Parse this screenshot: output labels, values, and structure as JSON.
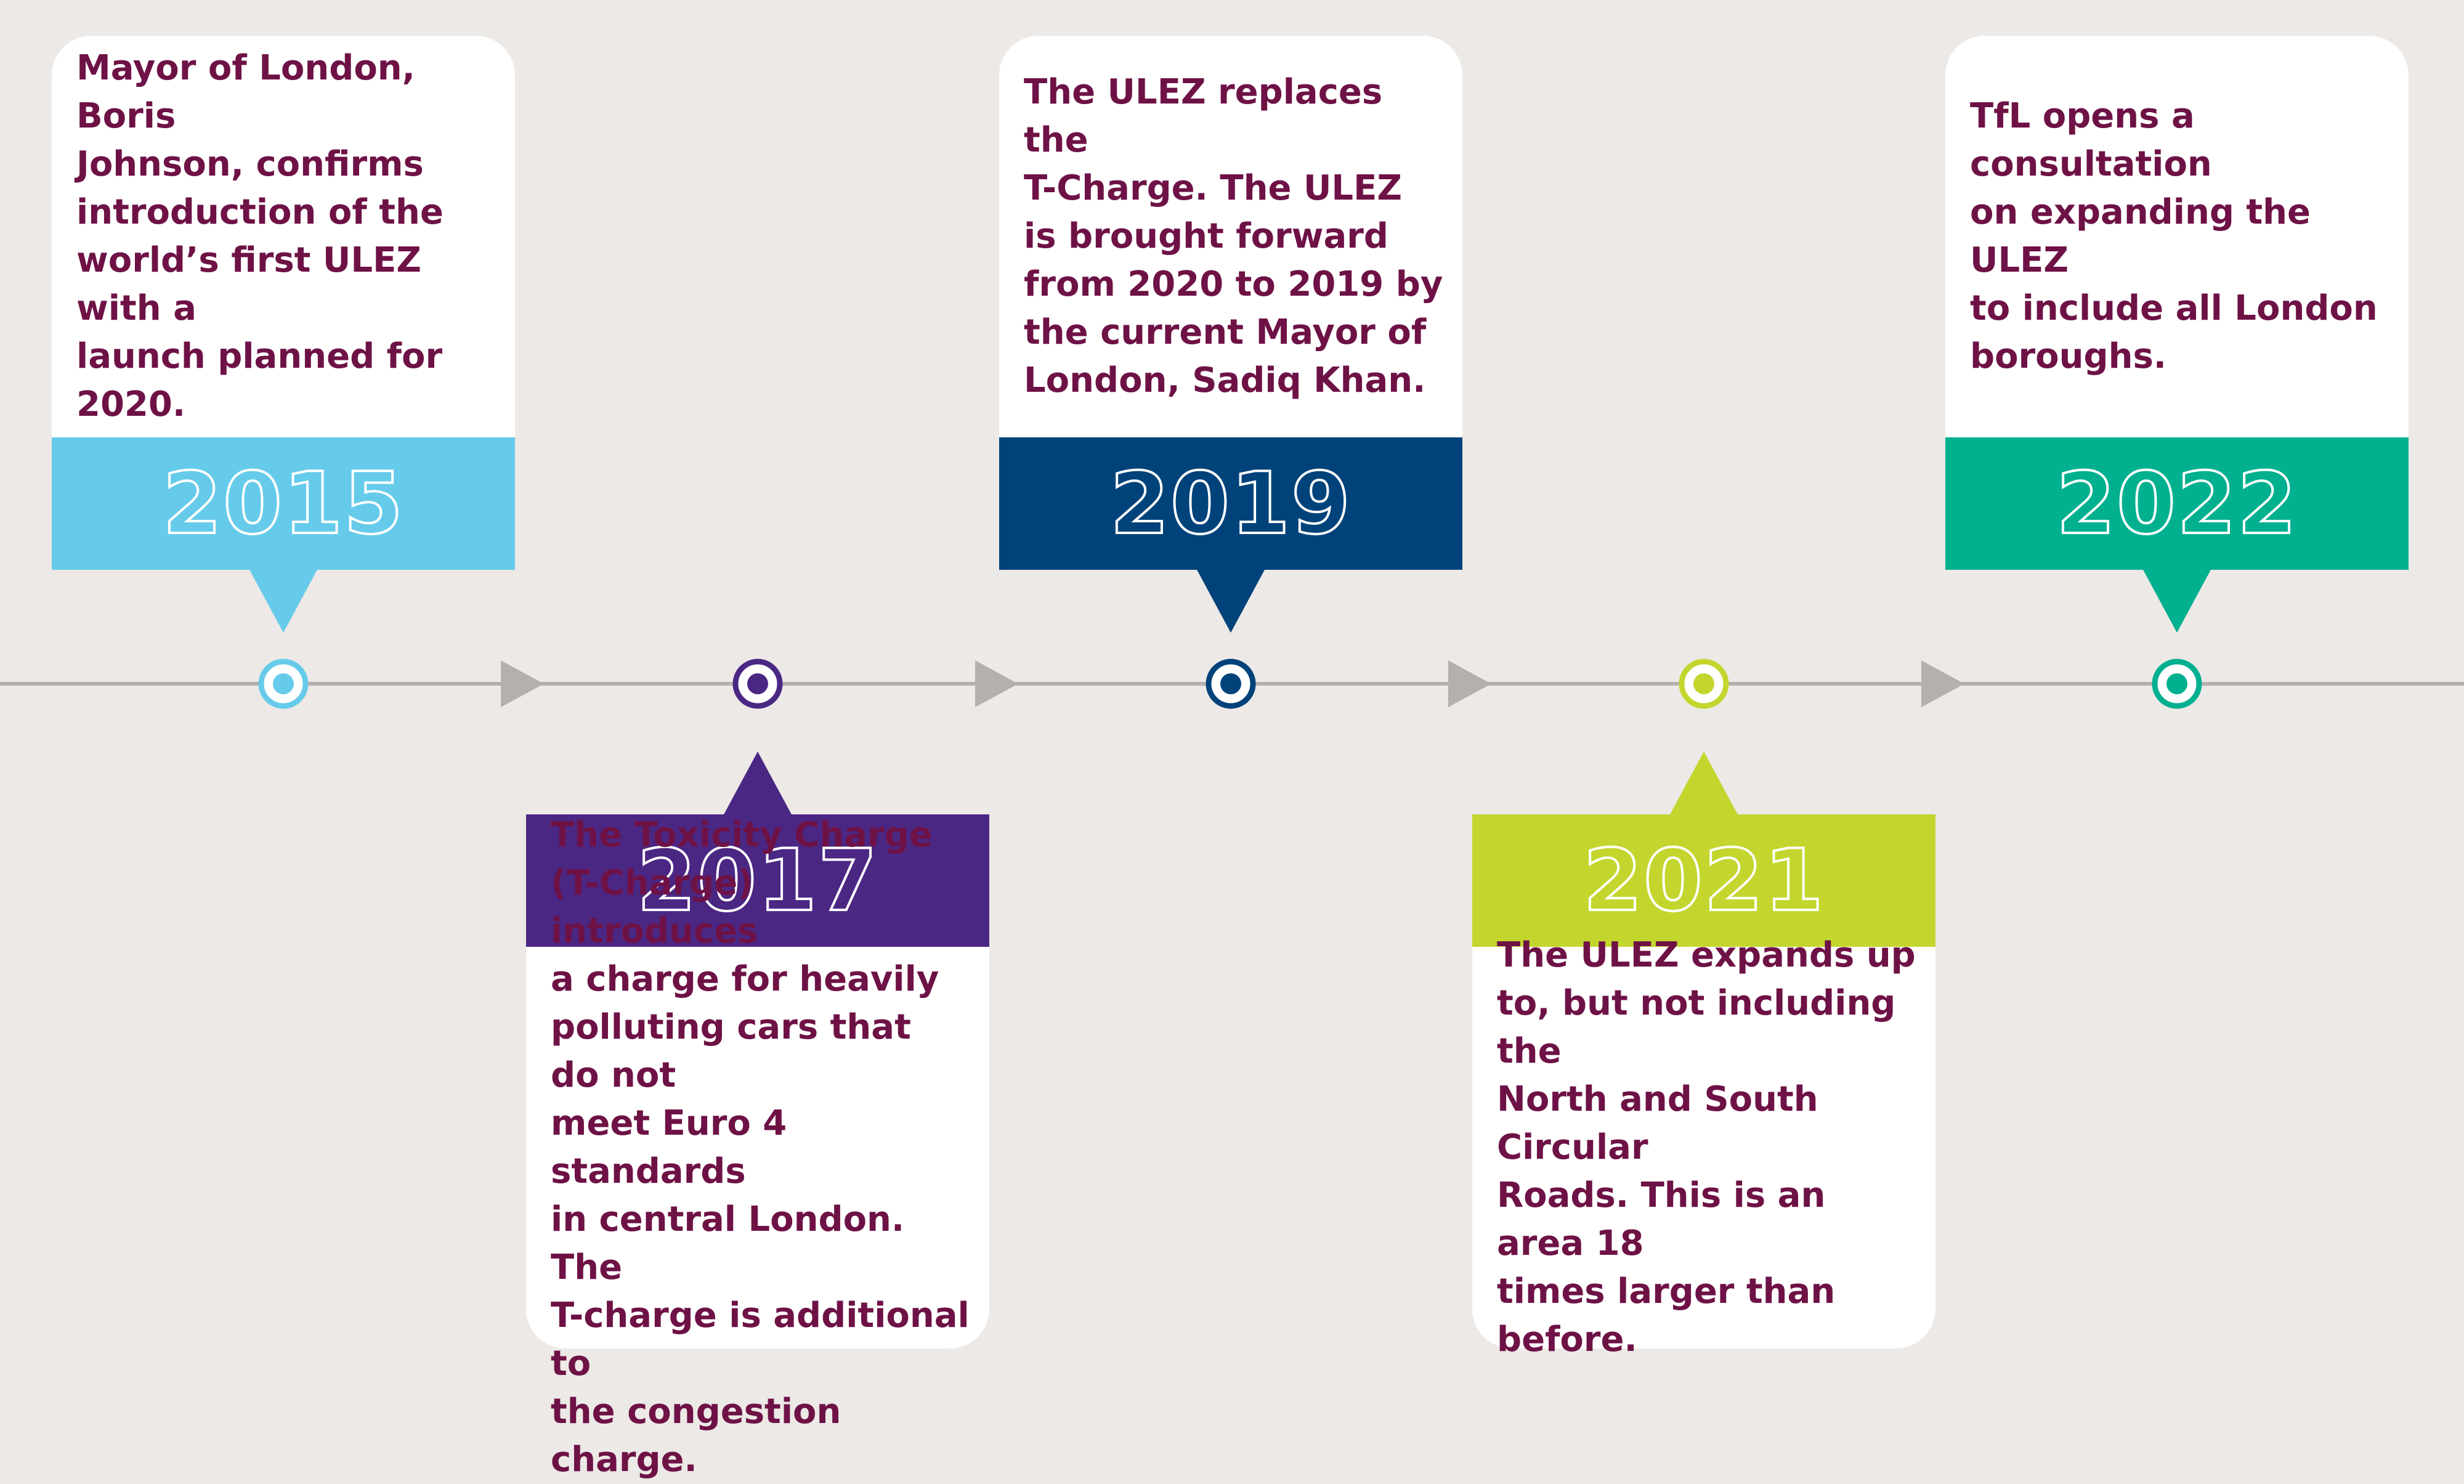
{
  "colors": {
    "background": "#ece9e6",
    "axis": "#b3b0ae",
    "text": "#6e1246"
  },
  "events": [
    {
      "year": "2015",
      "color": "#66cbea",
      "position": "above",
      "text": "Mayor of London, Boris\nJohnson, confirms\nintroduction of the\nworld’s first ULEZ with a\nlaunch planned for 2020."
    },
    {
      "year": "2017",
      "color": "#4b2784",
      "position": "below",
      "text": "The Toxicity Charge\n(T-Charge) introduces\na charge for heavily\npolluting cars that do not\nmeet Euro 4 standards\nin central London. The\nT-charge is additional to\nthe congestion charge."
    },
    {
      "year": "2019",
      "color": "#00427a",
      "position": "above",
      "text": "The ULEZ replaces the\nT-Charge. The ULEZ\nis brought forward\nfrom 2020 to 2019 by\nthe current Mayor of\nLondon, Sadiq Khan."
    },
    {
      "year": "2021",
      "color": "#c4d62e",
      "position": "below",
      "text": "The ULEZ expands up\nto, but not including the\nNorth and South Circular\nRoads. This is an area 18\ntimes larger than before."
    },
    {
      "year": "2022",
      "color": "#00b08f",
      "position": "above",
      "text": "TfL opens a consultation\non expanding the ULEZ\nto include all London\nboroughs."
    }
  ]
}
